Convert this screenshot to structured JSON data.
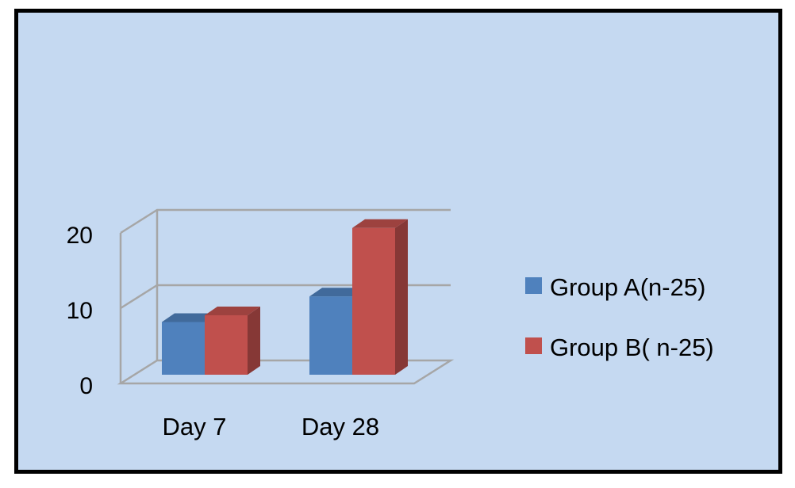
{
  "chart_data": {
    "type": "bar",
    "style": "3d-clustered-column",
    "categories": [
      "Day 7",
      "Day 28"
    ],
    "series": [
      {
        "name": "Group A(n-25)",
        "values": [
          7,
          10.4
        ],
        "color": "#4f81bd"
      },
      {
        "name": "Group B( n-25)",
        "values": [
          7.9,
          19.5
        ],
        "color": "#c0504d"
      }
    ],
    "yticks": [
      "0",
      "10",
      "20"
    ],
    "ylim": [
      0,
      20
    ],
    "grid": true,
    "legend_position": "right",
    "background_color": "#c5d9f1",
    "gridline_color": "#a6a6a6"
  }
}
